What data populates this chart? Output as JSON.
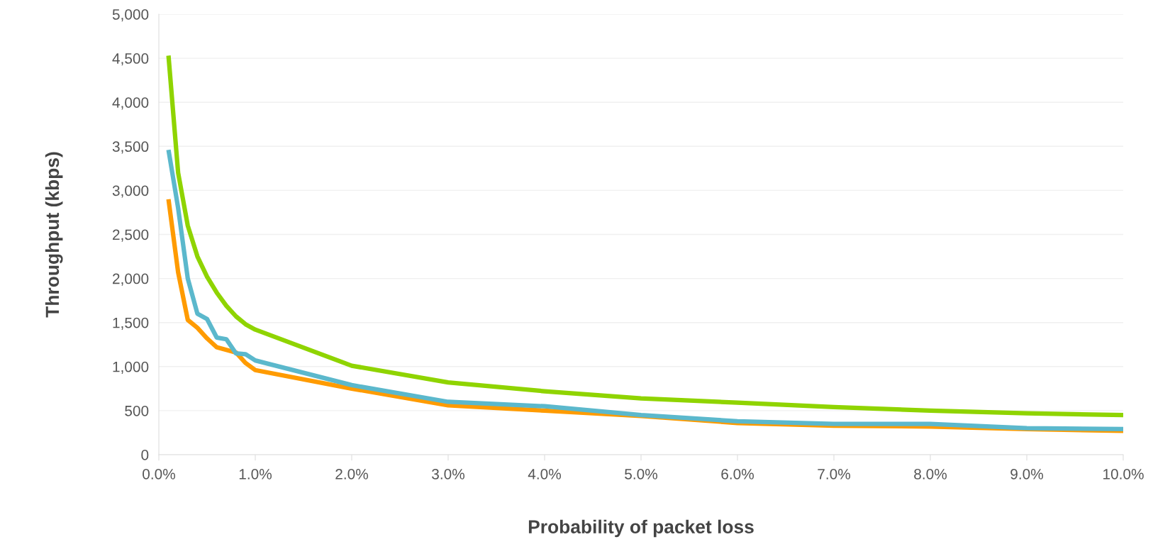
{
  "chart_data": {
    "type": "line",
    "xlabel": "Probability of packet loss",
    "ylabel": "Throughput (kbps)",
    "x": [
      0.1,
      0.2,
      0.3,
      0.4,
      0.5,
      0.6,
      0.7,
      0.8,
      0.9,
      1.0,
      2,
      3,
      4,
      5,
      6,
      7,
      8,
      9,
      10
    ],
    "series": [
      {
        "color": "#8fd400",
        "values": [
          4530,
          3200,
          2600,
          2250,
          2020,
          1840,
          1690,
          1570,
          1480,
          1420,
          1010,
          820,
          720,
          640,
          590,
          540,
          500,
          470,
          450
        ]
      },
      {
        "color": "#ff9b00",
        "values": [
          2900,
          2070,
          1530,
          1440,
          1320,
          1220,
          1190,
          1160,
          1040,
          960,
          750,
          560,
          500,
          440,
          360,
          330,
          320,
          290,
          270
        ]
      },
      {
        "color": "#5bb8cc",
        "values": [
          3460,
          2800,
          2000,
          1600,
          1540,
          1330,
          1310,
          1150,
          1140,
          1070,
          790,
          600,
          550,
          450,
          380,
          350,
          350,
          300,
          290
        ]
      }
    ],
    "xlim": [
      0,
      10
    ],
    "ylim": [
      0,
      5000
    ],
    "xticks": [
      {
        "value": 0,
        "label": "0.0%"
      },
      {
        "value": 1,
        "label": "1.0%"
      },
      {
        "value": 2,
        "label": "2.0%"
      },
      {
        "value": 3,
        "label": "3.0%"
      },
      {
        "value": 4,
        "label": "4.0%"
      },
      {
        "value": 5,
        "label": "5.0%"
      },
      {
        "value": 6,
        "label": "6.0%"
      },
      {
        "value": 7,
        "label": "7.0%"
      },
      {
        "value": 8,
        "label": "8.0%"
      },
      {
        "value": 9,
        "label": "9.0%"
      },
      {
        "value": 10,
        "label": "10.0%"
      }
    ],
    "yticks": [
      {
        "value": 0,
        "label": "0"
      },
      {
        "value": 500,
        "label": "500"
      },
      {
        "value": 1000,
        "label": "1,000"
      },
      {
        "value": 1500,
        "label": "1,500"
      },
      {
        "value": 2000,
        "label": "2,000"
      },
      {
        "value": 2500,
        "label": "2,500"
      },
      {
        "value": 3000,
        "label": "3,000"
      },
      {
        "value": 3500,
        "label": "3,500"
      },
      {
        "value": 4000,
        "label": "4,000"
      },
      {
        "value": 4500,
        "label": "4,500"
      },
      {
        "value": 5000,
        "label": "5,000"
      }
    ],
    "grid": "y",
    "line_style": "solid"
  }
}
